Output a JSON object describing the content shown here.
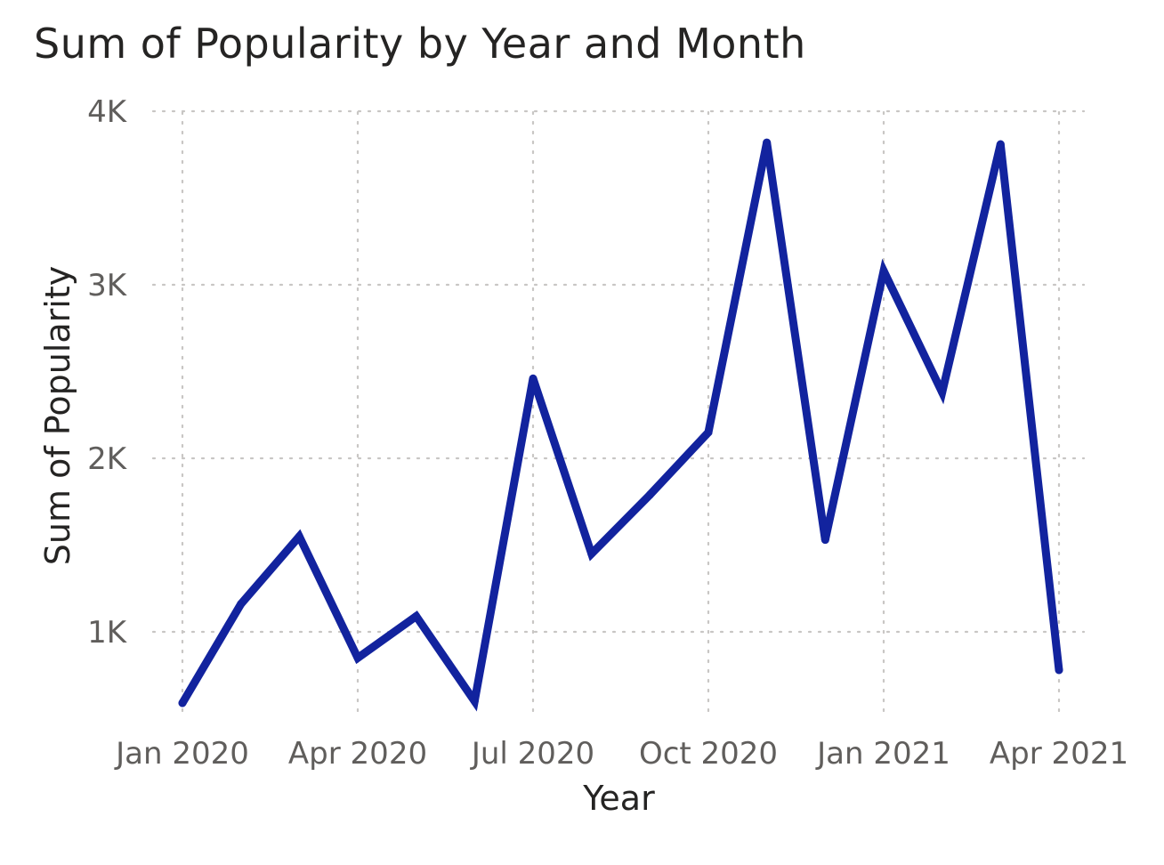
{
  "chart_data": {
    "type": "line",
    "title": "Sum of Popularity by Year and Month",
    "xlabel": "Year",
    "ylabel": "Sum of Popularity",
    "x": [
      "2020-01",
      "2020-02",
      "2020-03",
      "2020-04",
      "2020-05",
      "2020-06",
      "2020-07",
      "2020-08",
      "2020-09",
      "2020-10",
      "2020-11",
      "2020-12",
      "2021-01",
      "2021-02",
      "2021-03",
      "2021-04"
    ],
    "series": [
      {
        "values": [
          590,
          1160,
          1550,
          850,
          1090,
          600,
          2460,
          1450,
          1790,
          2150,
          3820,
          1530,
          3080,
          2380,
          3810,
          780
        ]
      }
    ],
    "x_ticks": [
      "Jan 2020",
      "Apr 2020",
      "Jul 2020",
      "Oct 2020",
      "Jan 2021",
      "Apr 2021"
    ],
    "x_tick_dates": [
      "2020-01",
      "2020-04",
      "2020-07",
      "2020-10",
      "2021-01",
      "2021-04"
    ],
    "y_ticks": [
      1000,
      2000,
      3000,
      4000
    ],
    "y_tick_labels": [
      "1K",
      "2K",
      "3K",
      "4K"
    ],
    "ylim": [
      500,
      4000
    ],
    "grid": true,
    "line_color": "#12239e"
  }
}
